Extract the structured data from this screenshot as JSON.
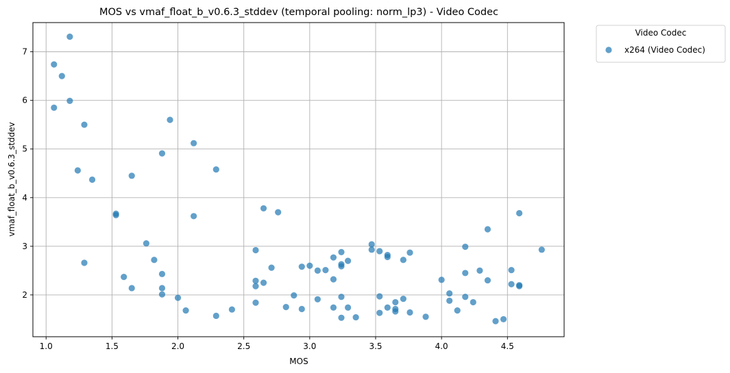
{
  "chart_data": {
    "type": "scatter",
    "title": "MOS vs vmaf_float_b_v0.6.3_stddev (temporal pooling: norm_lp3) - Video Codec",
    "xlabel": "MOS",
    "ylabel": "vmaf_float_b_v0.6.3_stddev",
    "xlim": [
      0.9,
      4.93
    ],
    "ylim": [
      1.14,
      7.6
    ],
    "xticks": [
      "1.0",
      "1.5",
      "2.0",
      "2.5",
      "3.0",
      "3.5",
      "4.0",
      "4.5"
    ],
    "yticks": [
      "2",
      "3",
      "4",
      "5",
      "6",
      "7"
    ],
    "grid": true,
    "legend": {
      "title": "Video Codec",
      "placement": "outside-top-right"
    },
    "series": [
      {
        "name": "x264 (Video Codec)",
        "color": "#1f77b4",
        "points": [
          [
            1.06,
            6.74
          ],
          [
            1.12,
            6.5
          ],
          [
            1.18,
            7.31
          ],
          [
            1.06,
            5.85
          ],
          [
            1.18,
            5.99
          ],
          [
            1.29,
            5.5
          ],
          [
            1.24,
            4.56
          ],
          [
            1.35,
            4.37
          ],
          [
            1.29,
            2.66
          ],
          [
            1.53,
            3.67
          ],
          [
            1.53,
            3.64
          ],
          [
            1.59,
            2.37
          ],
          [
            1.65,
            4.45
          ],
          [
            1.65,
            2.14
          ],
          [
            1.76,
            3.06
          ],
          [
            1.82,
            2.72
          ],
          [
            1.88,
            4.91
          ],
          [
            1.88,
            2.43
          ],
          [
            1.88,
            2.14
          ],
          [
            1.88,
            2.01
          ],
          [
            1.94,
            5.6
          ],
          [
            2.0,
            1.94
          ],
          [
            2.06,
            1.68
          ],
          [
            2.12,
            5.12
          ],
          [
            2.12,
            3.62
          ],
          [
            2.29,
            4.58
          ],
          [
            2.29,
            1.57
          ],
          [
            2.41,
            1.7
          ],
          [
            2.59,
            2.92
          ],
          [
            2.59,
            2.29
          ],
          [
            2.59,
            2.18
          ],
          [
            2.59,
            1.84
          ],
          [
            2.65,
            3.78
          ],
          [
            2.65,
            2.25
          ],
          [
            2.71,
            2.56
          ],
          [
            2.76,
            3.7
          ],
          [
            2.82,
            1.75
          ],
          [
            2.88,
            1.99
          ],
          [
            2.94,
            2.58
          ],
          [
            2.94,
            1.71
          ],
          [
            3.0,
            2.6
          ],
          [
            3.06,
            2.5
          ],
          [
            3.06,
            1.91
          ],
          [
            3.12,
            2.51
          ],
          [
            3.18,
            2.77
          ],
          [
            3.18,
            2.32
          ],
          [
            3.18,
            1.74
          ],
          [
            3.24,
            2.88
          ],
          [
            3.24,
            2.63
          ],
          [
            3.24,
            2.59
          ],
          [
            3.24,
            1.96
          ],
          [
            3.24,
            1.53
          ],
          [
            3.29,
            2.7
          ],
          [
            3.29,
            1.74
          ],
          [
            3.35,
            1.54
          ],
          [
            3.47,
            3.04
          ],
          [
            3.47,
            2.93
          ],
          [
            3.53,
            2.9
          ],
          [
            3.53,
            1.97
          ],
          [
            3.53,
            1.63
          ],
          [
            3.59,
            2.82
          ],
          [
            3.59,
            2.78
          ],
          [
            3.59,
            1.74
          ],
          [
            3.65,
            1.85
          ],
          [
            3.65,
            1.71
          ],
          [
            3.65,
            1.66
          ],
          [
            3.71,
            2.72
          ],
          [
            3.71,
            1.92
          ],
          [
            3.76,
            2.87
          ],
          [
            3.76,
            1.64
          ],
          [
            3.88,
            1.55
          ],
          [
            4.0,
            2.31
          ],
          [
            4.06,
            2.03
          ],
          [
            4.06,
            1.88
          ],
          [
            4.12,
            1.68
          ],
          [
            4.18,
            2.99
          ],
          [
            4.18,
            2.45
          ],
          [
            4.18,
            1.96
          ],
          [
            4.24,
            1.85
          ],
          [
            4.29,
            2.5
          ],
          [
            4.35,
            3.35
          ],
          [
            4.35,
            2.3
          ],
          [
            4.41,
            1.46
          ],
          [
            4.47,
            1.5
          ],
          [
            4.53,
            2.51
          ],
          [
            4.53,
            2.22
          ],
          [
            4.59,
            3.68
          ],
          [
            4.59,
            2.2
          ],
          [
            4.59,
            2.18
          ],
          [
            4.76,
            2.93
          ]
        ]
      }
    ]
  }
}
